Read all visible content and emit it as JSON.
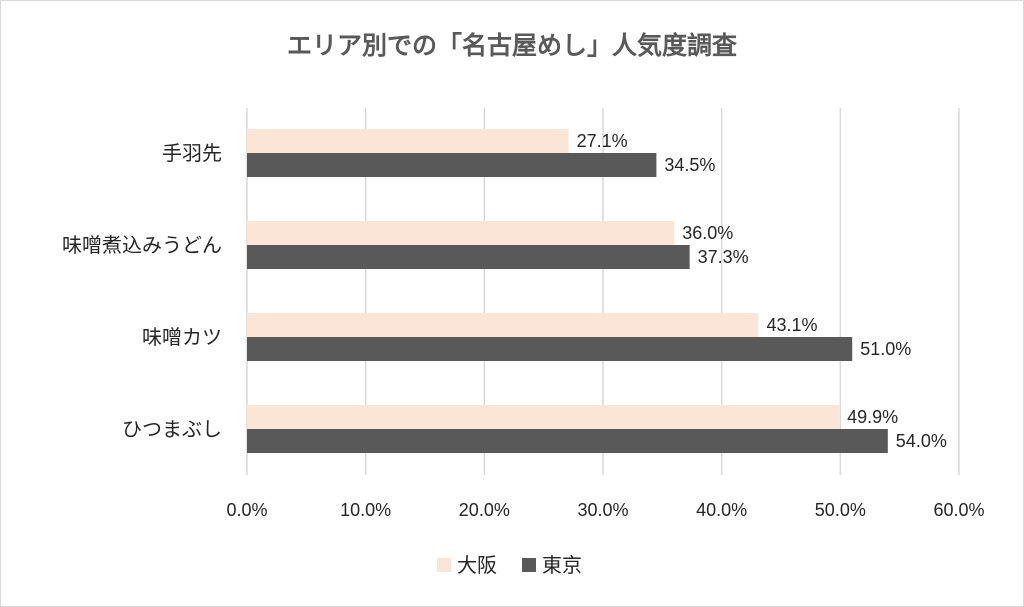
{
  "chart_data": {
    "type": "bar",
    "orientation": "horizontal",
    "title": "エリア別での「名古屋めし」人気度調査",
    "categories": [
      "手羽先",
      "味噌煮込みうどん",
      "味噌カツ",
      "ひつまぶし"
    ],
    "series": [
      {
        "name": "大阪",
        "color": "#fbe5d6",
        "values": [
          27.1,
          36.0,
          43.1,
          49.9
        ],
        "labels": [
          "27.1%",
          "36.0%",
          "43.1%",
          "49.9%"
        ]
      },
      {
        "name": "東京",
        "color": "#595959",
        "values": [
          34.5,
          37.3,
          51.0,
          54.0
        ],
        "labels": [
          "34.5%",
          "37.3%",
          "51.0%",
          "54.0%"
        ]
      }
    ],
    "xlim": [
      0,
      60
    ],
    "xticks": [
      "0.0%",
      "10.0%",
      "20.0%",
      "30.0%",
      "40.0%",
      "50.0%",
      "60.0%"
    ],
    "grid": true,
    "legend_position": "bottom"
  }
}
